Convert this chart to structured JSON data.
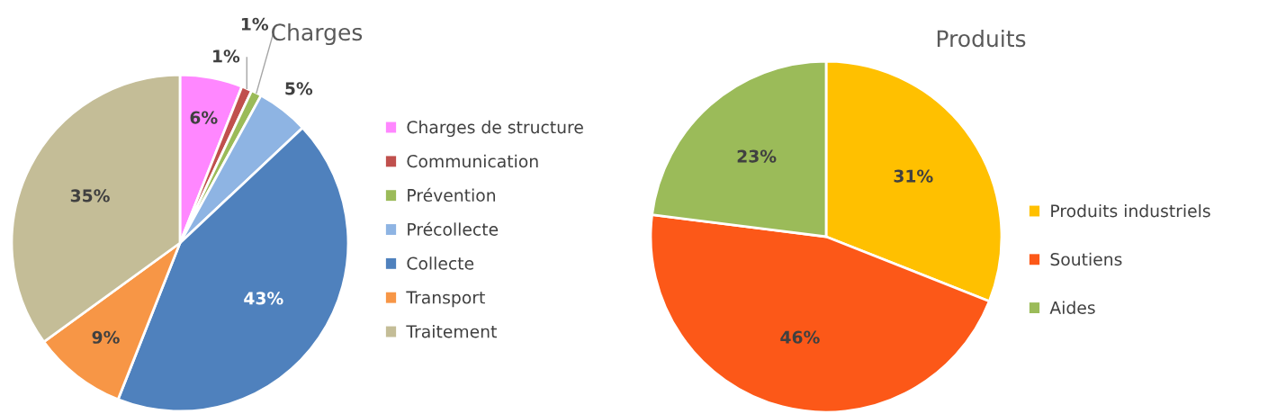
{
  "chart_data": [
    {
      "type": "pie",
      "title": "Charges",
      "categories": [
        "Charges de structure",
        "Communication",
        "Prévention",
        "Précollecte",
        "Collecte",
        "Transport",
        "Traitement"
      ],
      "values": [
        6,
        1,
        1,
        5,
        43,
        9,
        35
      ],
      "colors": [
        "#ff87ff",
        "#c0504d",
        "#9bbb59",
        "#8eb4e3",
        "#4f81bd",
        "#f79646",
        "#c4bd97"
      ],
      "value_labels": [
        "6%",
        "1%",
        "1%",
        "5%",
        "43%",
        "9%",
        "35%"
      ],
      "legend": "right"
    },
    {
      "type": "pie",
      "title": "Produits",
      "categories": [
        "Produits industriels",
        "Soutiens",
        "Aides"
      ],
      "values": [
        31,
        46,
        23
      ],
      "colors": [
        "#ffc000",
        "#fc5818",
        "#9bbb59"
      ],
      "value_labels": [
        "31%",
        "46%",
        "23%"
      ],
      "legend": "right"
    }
  ]
}
